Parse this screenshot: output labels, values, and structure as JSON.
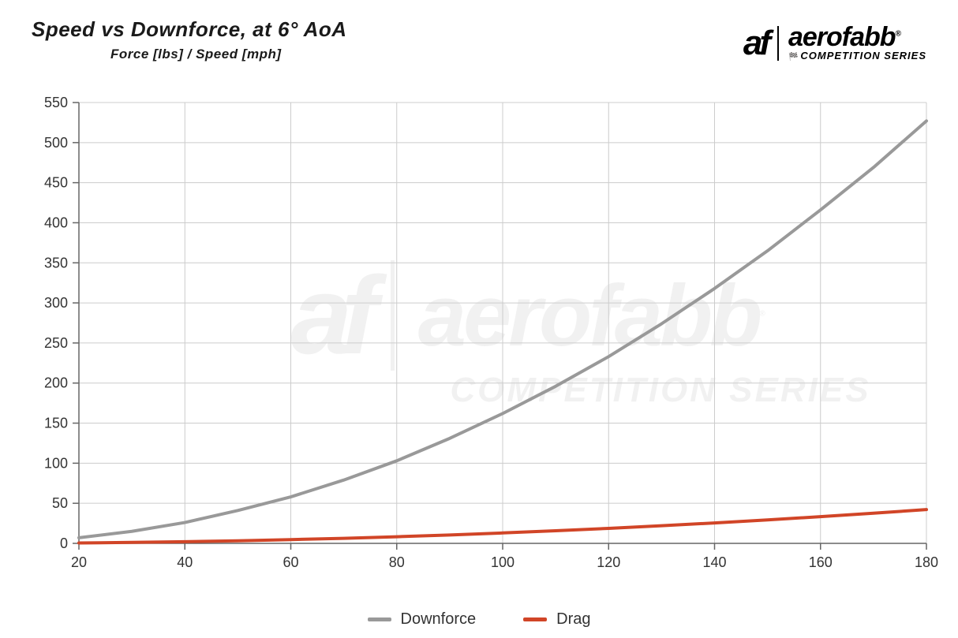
{
  "title": {
    "main": "Speed vs Downforce, at 6° AoA",
    "sub": "Force [lbs] / Speed [mph]"
  },
  "logo": {
    "mark": "af",
    "name": "aerofabb",
    "sub": "COMPETITION SERIES",
    "registered": "®"
  },
  "chart": {
    "type": "line",
    "xlim": [
      20,
      180
    ],
    "ylim": [
      0,
      550
    ],
    "xtick_step": 20,
    "ytick_step": 50,
    "background_color": "#ffffff",
    "grid_color": "#cccccc",
    "axis_color": "#666666",
    "tick_fontsize": 18,
    "tick_color": "#333333",
    "line_width": 4,
    "x_ticks": [
      20,
      40,
      60,
      80,
      100,
      120,
      140,
      160,
      180
    ],
    "y_ticks": [
      0,
      50,
      100,
      150,
      200,
      250,
      300,
      350,
      400,
      450,
      500,
      550
    ],
    "series": [
      {
        "name": "Downforce",
        "color": "#999999",
        "x": [
          20,
          30,
          40,
          50,
          60,
          70,
          80,
          90,
          100,
          110,
          120,
          130,
          140,
          150,
          160,
          170,
          180
        ],
        "y": [
          7,
          15,
          26,
          41,
          58,
          79,
          103,
          131,
          162,
          196,
          233,
          274,
          318,
          365,
          416,
          469,
          527
        ]
      },
      {
        "name": "Drag",
        "color": "#d14527",
        "x": [
          20,
          30,
          40,
          50,
          60,
          70,
          80,
          90,
          100,
          110,
          120,
          130,
          140,
          150,
          160,
          170,
          180
        ],
        "y": [
          0.5,
          1.2,
          2.1,
          3.2,
          4.7,
          6.3,
          8.3,
          10.5,
          13.0,
          15.7,
          18.7,
          22.0,
          25.5,
          29.3,
          33.3,
          37.6,
          42.2
        ]
      }
    ]
  },
  "legend": {
    "fontsize": 20,
    "items": [
      {
        "label": "Downforce",
        "color": "#999999"
      },
      {
        "label": "Drag",
        "color": "#d14527"
      }
    ]
  },
  "watermark": {
    "opacity": 0.05
  }
}
